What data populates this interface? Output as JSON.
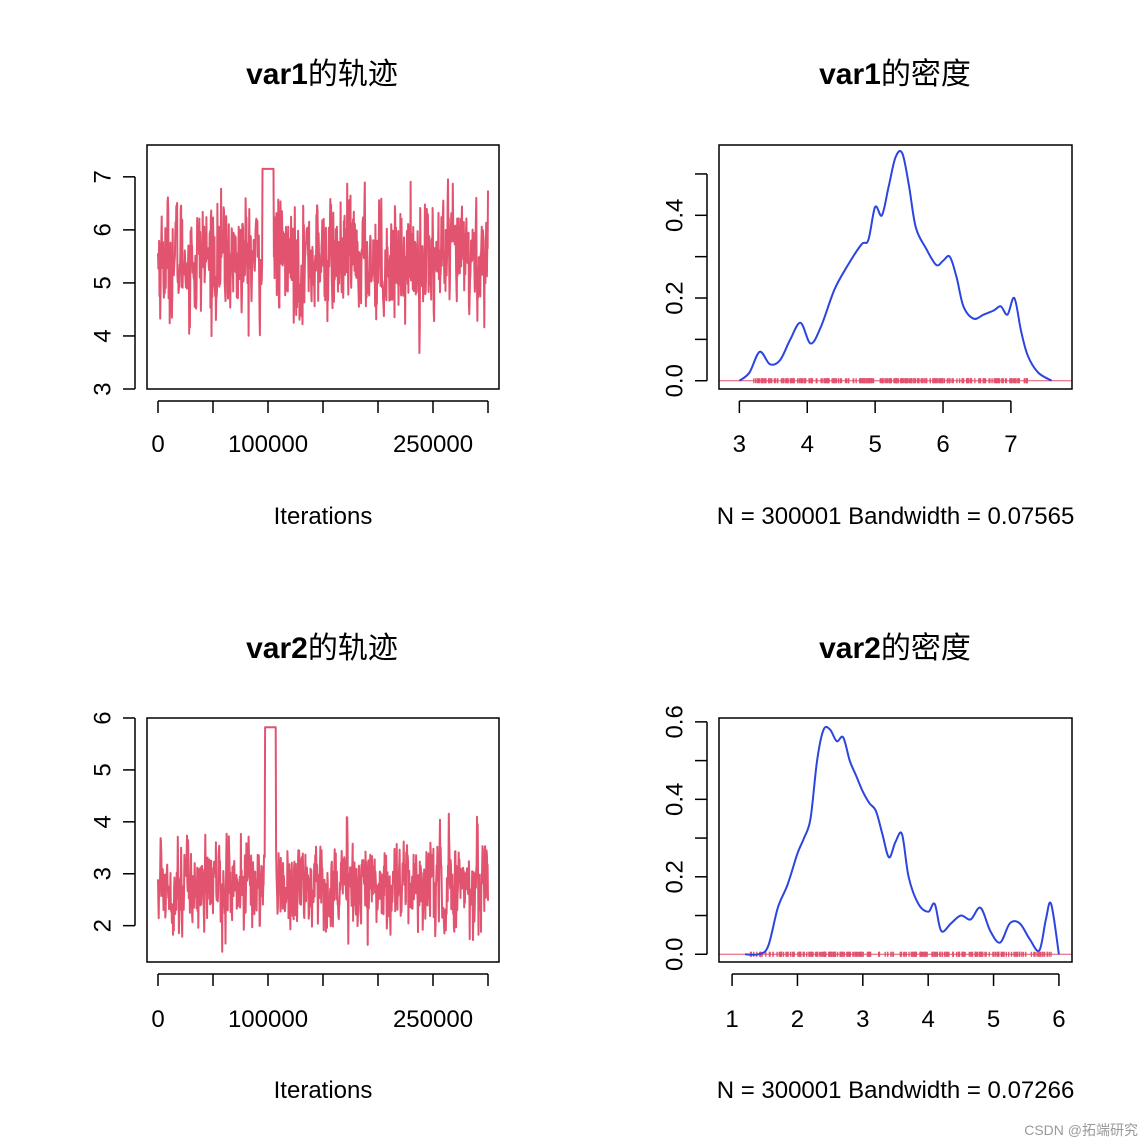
{
  "watermark": "CSDN @拓端研究",
  "colors": {
    "trace": "#E2536F",
    "density": "#2B45E0",
    "rug": "#E2536F",
    "axis": "#000000"
  },
  "chart_data": [
    {
      "type": "line",
      "title_bold": "var1",
      "title_rest": "的轨迹",
      "xlabel": "Iterations",
      "xlim": [
        -10000,
        310000
      ],
      "ylim": [
        3,
        7.6
      ],
      "xticks": [
        0,
        50000,
        100000,
        150000,
        200000,
        250000,
        300000
      ],
      "xtick_labels": [
        "0",
        "",
        "100000",
        "",
        "",
        "250000",
        ""
      ],
      "yticks": [
        3,
        4,
        5,
        6,
        7
      ],
      "ytick_labels": [
        "3",
        "4",
        "5",
        "6",
        "7"
      ],
      "series": [
        {
          "mean": 5.45,
          "sd": 0.78,
          "min": 3.15,
          "max": 7.55
        }
      ],
      "flat_segments": [
        {
          "from": 95000,
          "to": 105000,
          "value": 7.15
        }
      ]
    },
    {
      "type": "line",
      "title_bold": "var1",
      "title_rest": "的密度",
      "xlabel": "N = 300001   Bandwidth = 0.07565",
      "xlim": [
        2.7,
        7.9
      ],
      "ylim": [
        -0.02,
        0.57
      ],
      "xticks": [
        3,
        4,
        5,
        6,
        7
      ],
      "xtick_labels": [
        "3",
        "4",
        "5",
        "6",
        "7"
      ],
      "yticks": [
        0,
        0.1,
        0.2,
        0.3,
        0.4,
        0.5
      ],
      "ytick_labels": [
        "0.0",
        "",
        "0.2",
        "",
        "0.4",
        ""
      ],
      "x": [
        3.0,
        3.15,
        3.3,
        3.45,
        3.6,
        3.75,
        3.9,
        4.05,
        4.2,
        4.4,
        4.6,
        4.8,
        4.9,
        5.0,
        5.1,
        5.2,
        5.3,
        5.4,
        5.5,
        5.6,
        5.75,
        5.9,
        6.0,
        6.1,
        6.2,
        6.3,
        6.45,
        6.6,
        6.75,
        6.85,
        6.95,
        7.05,
        7.15,
        7.25,
        7.4,
        7.6
      ],
      "y": [
        0.0,
        0.02,
        0.07,
        0.04,
        0.05,
        0.1,
        0.14,
        0.09,
        0.13,
        0.22,
        0.28,
        0.33,
        0.34,
        0.42,
        0.4,
        0.47,
        0.54,
        0.55,
        0.47,
        0.37,
        0.32,
        0.28,
        0.29,
        0.3,
        0.25,
        0.18,
        0.15,
        0.16,
        0.17,
        0.18,
        0.16,
        0.2,
        0.12,
        0.06,
        0.02,
        0.0
      ],
      "rug_range": [
        3.2,
        7.25
      ]
    },
    {
      "type": "line",
      "title_bold": "var2",
      "title_rest": "的轨迹",
      "xlabel": "Iterations",
      "xlim": [
        -10000,
        310000
      ],
      "ylim": [
        1.3,
        6.0
      ],
      "xticks": [
        0,
        50000,
        100000,
        150000,
        200000,
        250000,
        300000
      ],
      "xtick_labels": [
        "0",
        "",
        "100000",
        "",
        "",
        "250000",
        ""
      ],
      "yticks": [
        2,
        3,
        4,
        5,
        6
      ],
      "ytick_labels": [
        "2",
        "3",
        "4",
        "5",
        "6"
      ],
      "series": [
        {
          "mean": 2.8,
          "sd": 0.62,
          "min": 1.35,
          "max": 5.85
        }
      ],
      "flat_segments": [
        {
          "from": 97000,
          "to": 107000,
          "value": 5.82
        }
      ]
    },
    {
      "type": "line",
      "title_bold": "var2",
      "title_rest": "的密度",
      "xlabel": "N = 300001   Bandwidth = 0.07266",
      "xlim": [
        0.8,
        6.2
      ],
      "ylim": [
        -0.02,
        0.61
      ],
      "xticks": [
        1,
        2,
        3,
        4,
        5,
        6
      ],
      "xtick_labels": [
        "1",
        "2",
        "3",
        "4",
        "5",
        "6"
      ],
      "yticks": [
        0,
        0.1,
        0.2,
        0.3,
        0.4,
        0.5,
        0.6
      ],
      "ytick_labels": [
        "0.0",
        "",
        "0.2",
        "",
        "0.4",
        "",
        "0.6"
      ],
      "x": [
        1.2,
        1.4,
        1.55,
        1.7,
        1.85,
        2.0,
        2.1,
        2.2,
        2.3,
        2.4,
        2.5,
        2.6,
        2.7,
        2.8,
        2.9,
        3.0,
        3.1,
        3.2,
        3.3,
        3.4,
        3.5,
        3.6,
        3.7,
        3.85,
        4.0,
        4.1,
        4.2,
        4.35,
        4.5,
        4.65,
        4.8,
        4.95,
        5.1,
        5.25,
        5.4,
        5.55,
        5.7,
        5.8,
        5.88,
        6.0
      ],
      "y": [
        0.0,
        0.0,
        0.02,
        0.12,
        0.18,
        0.26,
        0.3,
        0.35,
        0.5,
        0.58,
        0.58,
        0.55,
        0.56,
        0.5,
        0.46,
        0.42,
        0.39,
        0.37,
        0.31,
        0.25,
        0.29,
        0.31,
        0.2,
        0.13,
        0.11,
        0.13,
        0.06,
        0.08,
        0.1,
        0.09,
        0.12,
        0.06,
        0.03,
        0.08,
        0.08,
        0.04,
        0.01,
        0.09,
        0.13,
        0.0
      ],
      "rug_range": [
        1.25,
        5.9
      ]
    }
  ]
}
